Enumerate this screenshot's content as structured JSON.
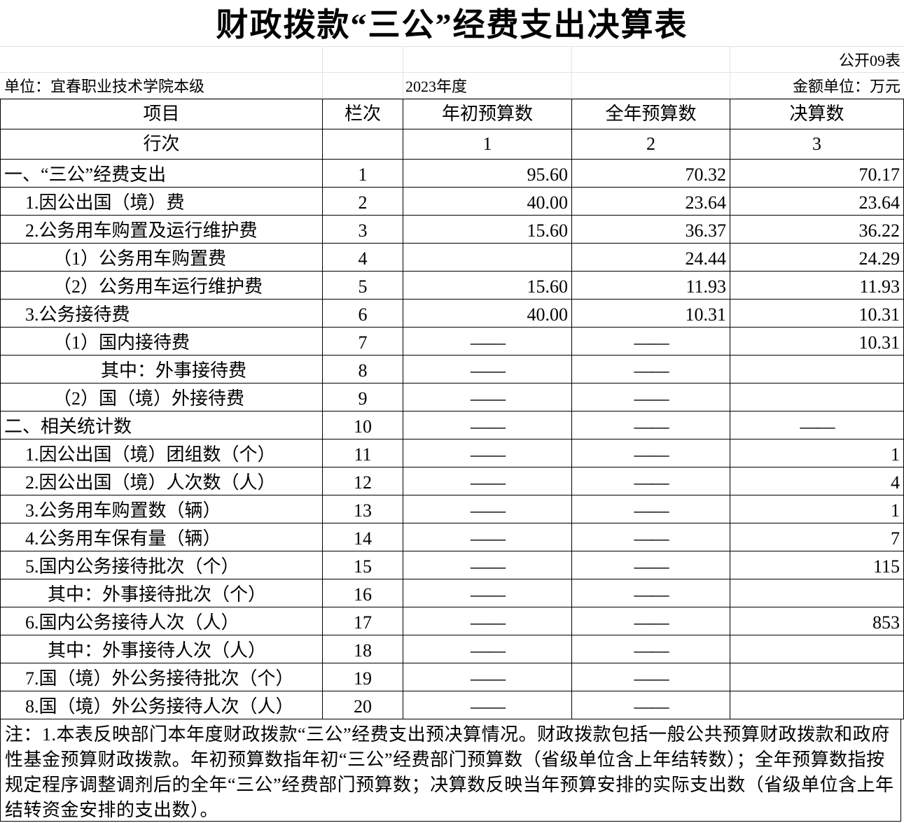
{
  "title": "财政拨款“三公”经费支出决算表",
  "form_no": "公开09表",
  "unit": "单位：宜春职业技术学院本级",
  "year": "2023年度",
  "amount_unit": "金额单位：万元",
  "headers": [
    "项目",
    "栏次",
    "年初预算数",
    "全年预算数",
    "决算数"
  ],
  "subheader": [
    "行次",
    "",
    "1",
    "2",
    "3"
  ],
  "rows": [
    [
      "一、“三公”经费支出",
      "1",
      "95.60",
      "70.32",
      "70.17"
    ],
    [
      "1.因公出国（境）费",
      "2",
      "40.00",
      "23.64",
      "23.64"
    ],
    [
      "2.公务用车购置及运行维护费",
      "3",
      "15.60",
      "36.37",
      "36.22"
    ],
    [
      "（1）公务用车购置费",
      "4",
      "",
      "24.44",
      "24.29"
    ],
    [
      "（2）公务用车运行维护费",
      "5",
      "15.60",
      "11.93",
      "11.93"
    ],
    [
      "3.公务接待费",
      "6",
      "40.00",
      "10.31",
      "10.31"
    ],
    [
      "（1）国内接待费",
      "7",
      "——",
      "——",
      "10.31"
    ],
    [
      "其中：外事接待费",
      "8",
      "——",
      "——",
      ""
    ],
    [
      "（2）国（境）外接待费",
      "9",
      "——",
      "——",
      ""
    ],
    [
      "二、相关统计数",
      "10",
      "——",
      "——",
      "——"
    ],
    [
      "1.因公出国（境）团组数（个）",
      "11",
      "——",
      "——",
      "1"
    ],
    [
      "2.因公出国（境）人次数（人）",
      "12",
      "——",
      "——",
      "4"
    ],
    [
      "3.公务用车购置数（辆）",
      "13",
      "——",
      "——",
      "1"
    ],
    [
      "4.公务用车保有量（辆）",
      "14",
      "——",
      "——",
      "7"
    ],
    [
      "5.国内公务接待批次（个）",
      "15",
      "——",
      "——",
      "115"
    ],
    [
      "其中：外事接待批次（个）",
      "16",
      "——",
      "——",
      ""
    ],
    [
      "6.国内公务接待人次（人）",
      "17",
      "——",
      "——",
      "853"
    ],
    [
      "其中：外事接待人次（人）",
      "18",
      "——",
      "——",
      ""
    ],
    [
      "7.国（境）外公务接待批次（个）",
      "19",
      "——",
      "——",
      ""
    ],
    [
      "8.国（境）外公务接待人次（人）",
      "20",
      "——",
      "——",
      ""
    ]
  ],
  "note": "注：1.本表反映部门本年度财政拨款“三公”经费支出预决算情况。财政拨款包括一般公共预算财政拨款和政府性基金预算财政拨款。年初预算数指年初“三公”经费部门预算数（省级单位含上年结转数）；全年预算数指按规定程序调整调剂后的全年“三公”经费部门预算数；决算数反映当年预算安排的实际支出数（省级单位含上年结转资金安排的支出数）。"
}
